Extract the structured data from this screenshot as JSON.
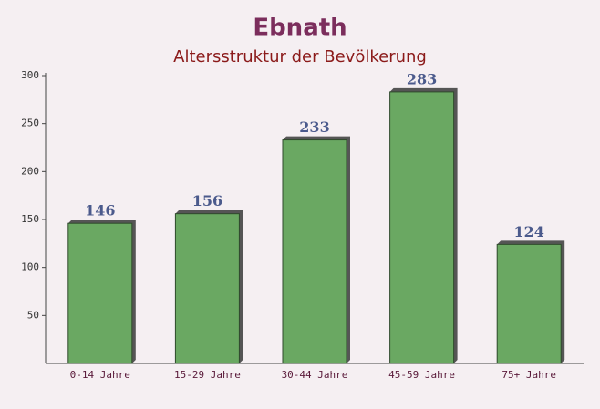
{
  "chart_data": {
    "type": "bar",
    "title": "Ebnath",
    "subtitle": "Altersstruktur der Bevölkerung",
    "categories": [
      "0-14 Jahre",
      "15-29 Jahre",
      "30-44 Jahre",
      "45-59 Jahre",
      "75+ Jahre"
    ],
    "values": [
      146,
      156,
      233,
      283,
      124
    ],
    "color": "#6aa862",
    "ylim": [
      0,
      300
    ],
    "yticks": [
      50,
      100,
      150,
      200,
      250,
      300
    ]
  }
}
